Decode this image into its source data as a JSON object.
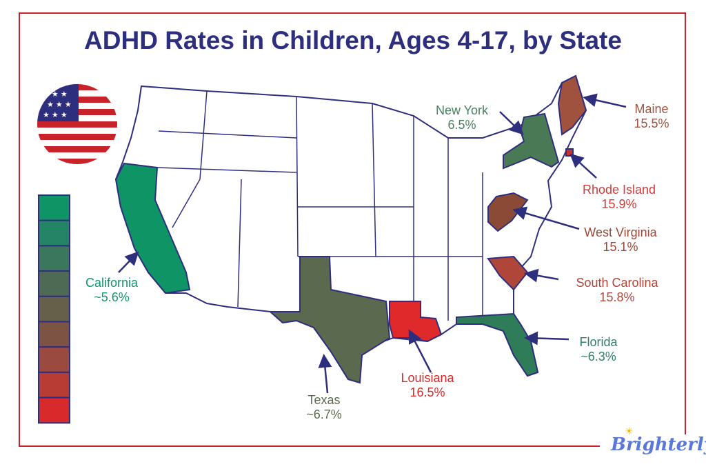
{
  "title": "ADHD Rates in Children, Ages 4-17, by State",
  "brand": "Brighterly",
  "legend": {
    "cells": 9,
    "colors_top_to_bottom": [
      "#0f9466",
      "#238566",
      "#3a775c",
      "#4f6a54",
      "#66604a",
      "#7d5444",
      "#9a4a3e",
      "#b83c34",
      "#d8292b"
    ]
  },
  "states": [
    {
      "name": "California",
      "value": "~5.6%",
      "color": "#0f9466",
      "label_color": "#12966a"
    },
    {
      "name": "Texas",
      "value": "~6.7%",
      "color": "#5b6a4e",
      "label_color": "#5b6a4e"
    },
    {
      "name": "Louisiana",
      "value": "16.5%",
      "color": "#e0292b",
      "label_color": "#d8292b"
    },
    {
      "name": "Florida",
      "value": "~6.3%",
      "color": "#2e7d58",
      "label_color": "#2e8060"
    },
    {
      "name": "New York",
      "value": "6.5%",
      "color": "#4a7a55",
      "label_color": "#4a8060"
    },
    {
      "name": "Maine",
      "value": "15.5%",
      "color": "#a0523f",
      "label_color": "#a0523f"
    },
    {
      "name": "Rhode Island",
      "value": "15.9%",
      "color": "#c5332c",
      "label_color": "#d43a3a"
    },
    {
      "name": "West Virginia",
      "value": "15.1%",
      "color": "#8b4a35",
      "label_color": "#9a4a3a"
    },
    {
      "name": "South Carolina",
      "value": "15.8%",
      "color": "#b0453a",
      "label_color": "#b0453a"
    }
  ]
}
